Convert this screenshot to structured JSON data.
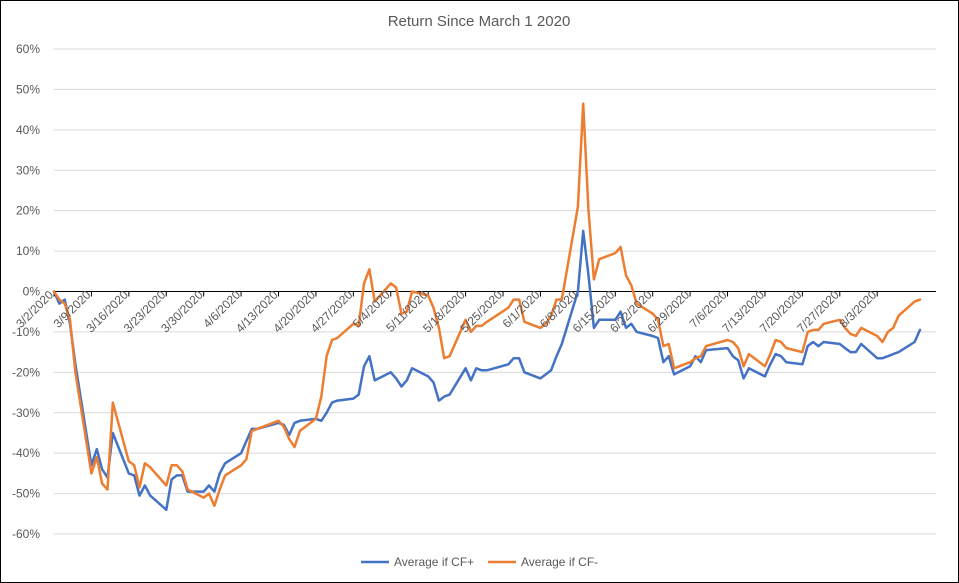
{
  "chart_data": {
    "type": "line",
    "title": "Return Since March 1 2020",
    "xlabel": "",
    "ylabel": "",
    "ylim": [
      -0.6,
      0.6
    ],
    "y_ticks": [
      0.6,
      0.5,
      0.4,
      0.3,
      0.2,
      0.1,
      0,
      -0.1,
      -0.2,
      -0.3,
      -0.4,
      -0.5,
      -0.6
    ],
    "y_tick_labels": [
      "60%",
      "50%",
      "40%",
      "30%",
      "20%",
      "10%",
      "0%",
      "-10%",
      "-20%",
      "-30%",
      "-40%",
      "-50%",
      "-60%"
    ],
    "x_range": [
      "2020-03-02",
      "2020-08-14"
    ],
    "x_tick_dates": [
      "2020-03-02",
      "2020-03-09",
      "2020-03-16",
      "2020-03-23",
      "2020-03-30",
      "2020-04-06",
      "2020-04-13",
      "2020-04-20",
      "2020-04-27",
      "2020-05-04",
      "2020-05-11",
      "2020-05-18",
      "2020-05-25",
      "2020-06-01",
      "2020-06-08",
      "2020-06-15",
      "2020-06-22",
      "2020-06-29",
      "2020-07-06",
      "2020-07-13",
      "2020-07-20",
      "2020-07-27",
      "2020-08-03"
    ],
    "x_tick_labels": [
      "3/2/2020",
      "3/9/2020",
      "3/16/2020",
      "3/23/2020",
      "3/30/2020",
      "4/6/2020",
      "4/13/2020",
      "4/20/2020",
      "4/27/2020",
      "5/4/2020",
      "5/11/2020",
      "5/18/2020",
      "5/25/2020",
      "6/1/2020",
      "6/8/2020",
      "6/15/2020",
      "6/22/2020",
      "6/29/2020",
      "7/6/2020",
      "7/13/2020",
      "7/20/2020",
      "7/27/2020",
      "8/3/2020"
    ],
    "grid": true,
    "legend_position": "bottom",
    "series": [
      {
        "name": "Average if CF+",
        "color": "#4472C4",
        "points": [
          [
            "2020-03-02",
            0.0
          ],
          [
            "2020-03-03",
            -0.03
          ],
          [
            "2020-03-04",
            -0.02
          ],
          [
            "2020-03-05",
            -0.08
          ],
          [
            "2020-03-06",
            -0.18
          ],
          [
            "2020-03-09",
            -0.43
          ],
          [
            "2020-03-10",
            -0.39
          ],
          [
            "2020-03-11",
            -0.44
          ],
          [
            "2020-03-12",
            -0.46
          ],
          [
            "2020-03-13",
            -0.35
          ],
          [
            "2020-03-16",
            -0.45
          ],
          [
            "2020-03-17",
            -0.455
          ],
          [
            "2020-03-18",
            -0.505
          ],
          [
            "2020-03-19",
            -0.48
          ],
          [
            "2020-03-20",
            -0.505
          ],
          [
            "2020-03-23",
            -0.54
          ],
          [
            "2020-03-24",
            -0.465
          ],
          [
            "2020-03-25",
            -0.455
          ],
          [
            "2020-03-26",
            -0.455
          ],
          [
            "2020-03-27",
            -0.495
          ],
          [
            "2020-03-30",
            -0.495
          ],
          [
            "2020-03-31",
            -0.48
          ],
          [
            "2020-04-01",
            -0.495
          ],
          [
            "2020-04-02",
            -0.45
          ],
          [
            "2020-04-03",
            -0.425
          ],
          [
            "2020-04-06",
            -0.4
          ],
          [
            "2020-04-07",
            -0.37
          ],
          [
            "2020-04-08",
            -0.34
          ],
          [
            "2020-04-09",
            -0.34
          ],
          [
            "2020-04-13",
            -0.325
          ],
          [
            "2020-04-14",
            -0.33
          ],
          [
            "2020-04-15",
            -0.355
          ],
          [
            "2020-04-16",
            -0.325
          ],
          [
            "2020-04-17",
            -0.32
          ],
          [
            "2020-04-20",
            -0.315
          ],
          [
            "2020-04-21",
            -0.32
          ],
          [
            "2020-04-22",
            -0.3
          ],
          [
            "2020-04-23",
            -0.275
          ],
          [
            "2020-04-24",
            -0.27
          ],
          [
            "2020-04-27",
            -0.265
          ],
          [
            "2020-04-28",
            -0.255
          ],
          [
            "2020-04-29",
            -0.185
          ],
          [
            "2020-04-30",
            -0.16
          ],
          [
            "2020-05-01",
            -0.22
          ],
          [
            "2020-05-04",
            -0.2
          ],
          [
            "2020-05-05",
            -0.215
          ],
          [
            "2020-05-06",
            -0.235
          ],
          [
            "2020-05-07",
            -0.22
          ],
          [
            "2020-05-08",
            -0.19
          ],
          [
            "2020-05-11",
            -0.21
          ],
          [
            "2020-05-12",
            -0.225
          ],
          [
            "2020-05-13",
            -0.27
          ],
          [
            "2020-05-14",
            -0.26
          ],
          [
            "2020-05-15",
            -0.255
          ],
          [
            "2020-05-18",
            -0.19
          ],
          [
            "2020-05-19",
            -0.22
          ],
          [
            "2020-05-20",
            -0.19
          ],
          [
            "2020-05-21",
            -0.195
          ],
          [
            "2020-05-22",
            -0.195
          ],
          [
            "2020-05-26",
            -0.18
          ],
          [
            "2020-05-27",
            -0.165
          ],
          [
            "2020-05-28",
            -0.165
          ],
          [
            "2020-05-29",
            -0.2
          ],
          [
            "2020-06-01",
            -0.215
          ],
          [
            "2020-06-02",
            -0.205
          ],
          [
            "2020-06-03",
            -0.195
          ],
          [
            "2020-06-04",
            -0.16
          ],
          [
            "2020-06-05",
            -0.13
          ],
          [
            "2020-06-08",
            0.0
          ],
          [
            "2020-06-09",
            0.15
          ],
          [
            "2020-06-10",
            0.04
          ],
          [
            "2020-06-11",
            -0.09
          ],
          [
            "2020-06-12",
            -0.07
          ],
          [
            "2020-06-15",
            -0.07
          ],
          [
            "2020-06-16",
            -0.05
          ],
          [
            "2020-06-17",
            -0.09
          ],
          [
            "2020-06-18",
            -0.08
          ],
          [
            "2020-06-19",
            -0.1
          ],
          [
            "2020-06-22",
            -0.11
          ],
          [
            "2020-06-23",
            -0.115
          ],
          [
            "2020-06-24",
            -0.175
          ],
          [
            "2020-06-25",
            -0.16
          ],
          [
            "2020-06-26",
            -0.205
          ],
          [
            "2020-06-29",
            -0.185
          ],
          [
            "2020-06-30",
            -0.16
          ],
          [
            "2020-07-01",
            -0.175
          ],
          [
            "2020-07-02",
            -0.145
          ],
          [
            "2020-07-06",
            -0.14
          ],
          [
            "2020-07-07",
            -0.16
          ],
          [
            "2020-07-08",
            -0.17
          ],
          [
            "2020-07-09",
            -0.215
          ],
          [
            "2020-07-10",
            -0.19
          ],
          [
            "2020-07-13",
            -0.21
          ],
          [
            "2020-07-14",
            -0.18
          ],
          [
            "2020-07-15",
            -0.155
          ],
          [
            "2020-07-16",
            -0.16
          ],
          [
            "2020-07-17",
            -0.175
          ],
          [
            "2020-07-20",
            -0.18
          ],
          [
            "2020-07-21",
            -0.135
          ],
          [
            "2020-07-22",
            -0.125
          ],
          [
            "2020-07-23",
            -0.135
          ],
          [
            "2020-07-24",
            -0.125
          ],
          [
            "2020-07-27",
            -0.13
          ],
          [
            "2020-07-28",
            -0.14
          ],
          [
            "2020-07-29",
            -0.15
          ],
          [
            "2020-07-30",
            -0.15
          ],
          [
            "2020-07-31",
            -0.13
          ],
          [
            "2020-08-03",
            -0.165
          ],
          [
            "2020-08-04",
            -0.165
          ],
          [
            "2020-08-05",
            -0.16
          ],
          [
            "2020-08-06",
            -0.155
          ],
          [
            "2020-08-07",
            -0.15
          ],
          [
            "2020-08-10",
            -0.125
          ],
          [
            "2020-08-11",
            -0.095
          ]
        ]
      },
      {
        "name": "Average if CF-",
        "color": "#ED7D31",
        "points": [
          [
            "2020-03-02",
            0.0
          ],
          [
            "2020-03-03",
            -0.02
          ],
          [
            "2020-03-04",
            -0.03
          ],
          [
            "2020-03-05",
            -0.07
          ],
          [
            "2020-03-06",
            -0.2
          ],
          [
            "2020-03-09",
            -0.45
          ],
          [
            "2020-03-10",
            -0.41
          ],
          [
            "2020-03-11",
            -0.475
          ],
          [
            "2020-03-12",
            -0.49
          ],
          [
            "2020-03-13",
            -0.275
          ],
          [
            "2020-03-16",
            -0.42
          ],
          [
            "2020-03-17",
            -0.43
          ],
          [
            "2020-03-18",
            -0.485
          ],
          [
            "2020-03-19",
            -0.425
          ],
          [
            "2020-03-20",
            -0.435
          ],
          [
            "2020-03-23",
            -0.48
          ],
          [
            "2020-03-24",
            -0.43
          ],
          [
            "2020-03-25",
            -0.43
          ],
          [
            "2020-03-26",
            -0.445
          ],
          [
            "2020-03-27",
            -0.49
          ],
          [
            "2020-03-30",
            -0.51
          ],
          [
            "2020-03-31",
            -0.5
          ],
          [
            "2020-04-01",
            -0.53
          ],
          [
            "2020-04-02",
            -0.49
          ],
          [
            "2020-04-03",
            -0.455
          ],
          [
            "2020-04-06",
            -0.43
          ],
          [
            "2020-04-07",
            -0.415
          ],
          [
            "2020-04-08",
            -0.345
          ],
          [
            "2020-04-09",
            -0.34
          ],
          [
            "2020-04-13",
            -0.32
          ],
          [
            "2020-04-14",
            -0.335
          ],
          [
            "2020-04-15",
            -0.365
          ],
          [
            "2020-04-16",
            -0.385
          ],
          [
            "2020-04-17",
            -0.345
          ],
          [
            "2020-04-20",
            -0.315
          ],
          [
            "2020-04-21",
            -0.26
          ],
          [
            "2020-04-22",
            -0.16
          ],
          [
            "2020-04-23",
            -0.12
          ],
          [
            "2020-04-24",
            -0.115
          ],
          [
            "2020-04-27",
            -0.08
          ],
          [
            "2020-04-28",
            -0.085
          ],
          [
            "2020-04-29",
            0.02
          ],
          [
            "2020-04-30",
            0.055
          ],
          [
            "2020-05-01",
            -0.025
          ],
          [
            "2020-05-04",
            0.02
          ],
          [
            "2020-05-05",
            0.01
          ],
          [
            "2020-05-06",
            -0.055
          ],
          [
            "2020-05-07",
            -0.05
          ],
          [
            "2020-05-08",
            0.0
          ],
          [
            "2020-05-11",
            -0.01
          ],
          [
            "2020-05-12",
            -0.04
          ],
          [
            "2020-05-13",
            -0.09
          ],
          [
            "2020-05-14",
            -0.165
          ],
          [
            "2020-05-15",
            -0.16
          ],
          [
            "2020-05-18",
            -0.07
          ],
          [
            "2020-05-19",
            -0.1
          ],
          [
            "2020-05-20",
            -0.085
          ],
          [
            "2020-05-21",
            -0.085
          ],
          [
            "2020-05-22",
            -0.075
          ],
          [
            "2020-05-26",
            -0.04
          ],
          [
            "2020-05-27",
            -0.02
          ],
          [
            "2020-05-28",
            -0.02
          ],
          [
            "2020-05-29",
            -0.075
          ],
          [
            "2020-06-01",
            -0.09
          ],
          [
            "2020-06-02",
            -0.08
          ],
          [
            "2020-06-03",
            -0.06
          ],
          [
            "2020-06-04",
            -0.02
          ],
          [
            "2020-06-05",
            -0.02
          ],
          [
            "2020-06-08",
            0.21
          ],
          [
            "2020-06-09",
            0.465
          ],
          [
            "2020-06-10",
            0.2
          ],
          [
            "2020-06-11",
            0.03
          ],
          [
            "2020-06-12",
            0.08
          ],
          [
            "2020-06-15",
            0.095
          ],
          [
            "2020-06-16",
            0.11
          ],
          [
            "2020-06-17",
            0.04
          ],
          [
            "2020-06-18",
            0.015
          ],
          [
            "2020-06-19",
            -0.03
          ],
          [
            "2020-06-22",
            -0.055
          ],
          [
            "2020-06-23",
            -0.07
          ],
          [
            "2020-06-24",
            -0.135
          ],
          [
            "2020-06-25",
            -0.13
          ],
          [
            "2020-06-26",
            -0.19
          ],
          [
            "2020-06-29",
            -0.175
          ],
          [
            "2020-06-30",
            -0.165
          ],
          [
            "2020-07-01",
            -0.16
          ],
          [
            "2020-07-02",
            -0.135
          ],
          [
            "2020-07-06",
            -0.12
          ],
          [
            "2020-07-07",
            -0.125
          ],
          [
            "2020-07-08",
            -0.14
          ],
          [
            "2020-07-09",
            -0.185
          ],
          [
            "2020-07-10",
            -0.155
          ],
          [
            "2020-07-13",
            -0.185
          ],
          [
            "2020-07-14",
            -0.155
          ],
          [
            "2020-07-15",
            -0.12
          ],
          [
            "2020-07-16",
            -0.125
          ],
          [
            "2020-07-17",
            -0.14
          ],
          [
            "2020-07-20",
            -0.15
          ],
          [
            "2020-07-21",
            -0.1
          ],
          [
            "2020-07-22",
            -0.095
          ],
          [
            "2020-07-23",
            -0.095
          ],
          [
            "2020-07-24",
            -0.08
          ],
          [
            "2020-07-27",
            -0.07
          ],
          [
            "2020-07-28",
            -0.09
          ],
          [
            "2020-07-29",
            -0.105
          ],
          [
            "2020-07-30",
            -0.11
          ],
          [
            "2020-07-31",
            -0.09
          ],
          [
            "2020-08-03",
            -0.11
          ],
          [
            "2020-08-04",
            -0.125
          ],
          [
            "2020-08-05",
            -0.1
          ],
          [
            "2020-08-06",
            -0.09
          ],
          [
            "2020-08-07",
            -0.06
          ],
          [
            "2020-08-10",
            -0.025
          ],
          [
            "2020-08-11",
            -0.02
          ]
        ]
      }
    ]
  }
}
